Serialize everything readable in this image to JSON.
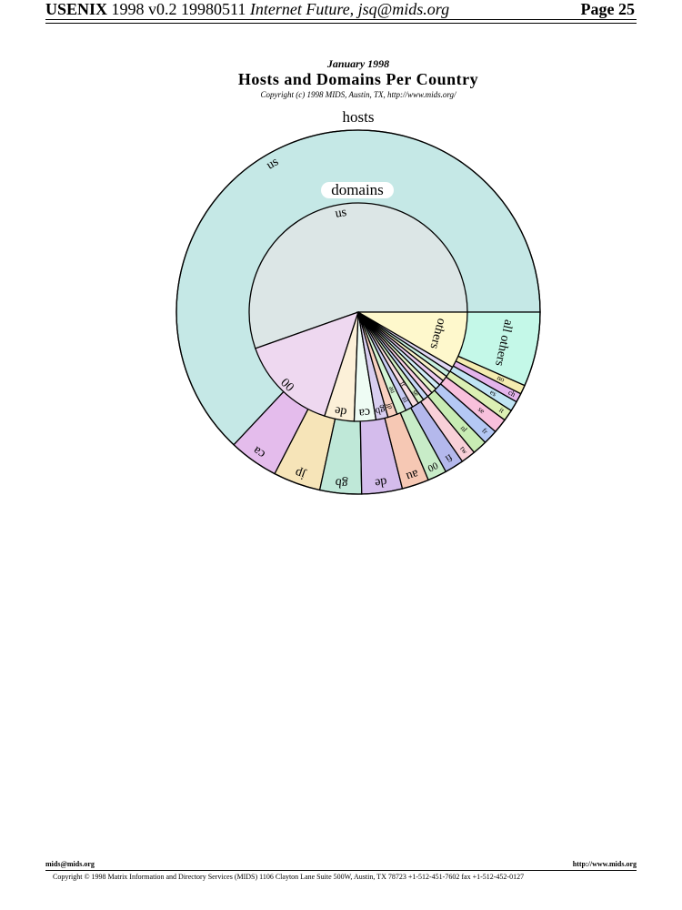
{
  "header": {
    "left_bold": "USENIX",
    "left_plain": "1998 v0.2 19980511",
    "left_italic": "Internet Future, jsq@mids.org",
    "page": "Page 25"
  },
  "chart_title": {
    "date": "January 1998",
    "title": "Hosts and Domains Per Country",
    "copyright": "Copyright (c) 1998 MIDS, Austin, TX, http://www.mids.org/"
  },
  "chart_data": {
    "type": "pie",
    "layout": "nested rings (hosts outer, domains inner), counterclockwise from east",
    "rings": [
      {
        "name": "hosts",
        "slices": [
          {
            "label": "us",
            "value": 63.0,
            "color": "#c5e8e6"
          },
          {
            "label": "ca",
            "value": 4.4,
            "color": "#e4bcec"
          },
          {
            "label": "jp",
            "value": 4.2,
            "color": "#f6e4b8"
          },
          {
            "label": "gb",
            "value": 3.7,
            "color": "#bfe8d8"
          },
          {
            "label": "de",
            "value": 3.6,
            "color": "#d4bcec"
          },
          {
            "label": "au",
            "value": 2.4,
            "color": "#f6c8b4"
          },
          {
            "label": "00",
            "value": 1.7,
            "color": "#c8ecc8"
          },
          {
            "label": "fi",
            "value": 1.7,
            "color": "#b4b8ec"
          },
          {
            "label": "tw",
            "value": 1.3,
            "color": "#f8d0d8"
          },
          {
            "label": "nl",
            "value": 1.3,
            "color": "#c8ecb4"
          },
          {
            "label": "fr",
            "value": 1.3,
            "color": "#b4c8f4"
          },
          {
            "label": "se",
            "value": 1.3,
            "color": "#f8c0dc"
          },
          {
            "label": "it",
            "value": 1.0,
            "color": "#dcf0b4"
          },
          {
            "label": "es",
            "value": 0.9,
            "color": "#c0e4f4"
          },
          {
            "label": "ch",
            "value": 0.8,
            "color": "#e4b4ec"
          },
          {
            "label": "no",
            "value": 0.8,
            "color": "#f4ecb0"
          },
          {
            "label": "all others",
            "value": 6.6,
            "color": "#c4f8e8"
          }
        ]
      },
      {
        "name": "domains",
        "slices": [
          {
            "label": "us",
            "value": 55.4,
            "color": "#dce6e6"
          },
          {
            "label": "00",
            "value": 14.6,
            "color": "#eed8f0"
          },
          {
            "label": "de",
            "value": 4.4,
            "color": "#fcf0d8"
          },
          {
            "label": "ca",
            "value": 3.2,
            "color": "#eefcf4"
          },
          {
            "label": "gb",
            "value": 1.8,
            "color": "#d8cef0"
          },
          {
            "label": "jp",
            "value": 1.4,
            "color": "#f8d0c0"
          },
          {
            "label": "au",
            "value": 1.4,
            "color": "#d4f4d4"
          },
          {
            "label": "nl",
            "value": 1.1,
            "color": "#c8ccf4"
          },
          {
            "label": "fr",
            "value": 1.0,
            "color": "#f8dce0"
          },
          {
            "label": "se",
            "value": 0.9,
            "color": "#d4f0c4"
          },
          {
            "label": "",
            "value": 0.8,
            "color": "#c8d8f8"
          },
          {
            "label": "",
            "value": 0.8,
            "color": "#f8d0e4"
          },
          {
            "label": "",
            "value": 0.8,
            "color": "#e4f4c8"
          },
          {
            "label": "",
            "value": 0.8,
            "color": "#d0ecf8"
          },
          {
            "label": "",
            "value": 0.8,
            "color": "#ecccf0"
          },
          {
            "label": "",
            "value": 0.8,
            "color": "#f8f0c8"
          },
          {
            "label": "",
            "value": 0.8,
            "color": "#c8f0e0"
          },
          {
            "label": "",
            "value": 0.8,
            "color": "#e0d8f4"
          },
          {
            "label": "others",
            "value": 8.4,
            "color": "#fef8cc"
          }
        ]
      }
    ]
  },
  "footer": {
    "email": "mids@mids.org",
    "url": "http://www.mids.org",
    "copyright": "Copyright © 1998 Matrix Information and Directory Services (MIDS) 1106 Clayton Lane Suite 500W, Austin, TX 78723 +1-512-451-7602 fax +1-512-452-0127"
  }
}
